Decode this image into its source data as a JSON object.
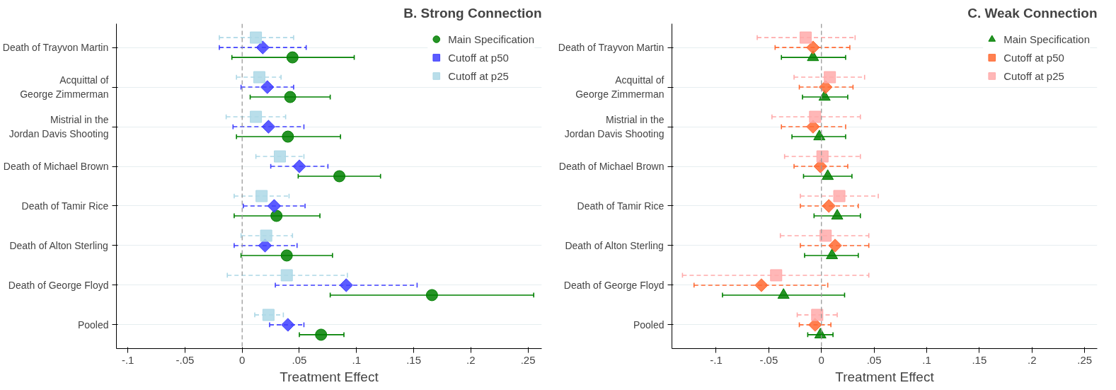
{
  "chart_data": [
    {
      "type": "scatter",
      "orientation": "horizontal",
      "title": "B. Strong Connection",
      "xlabel": "Treatment Effect",
      "categories": [
        "Death of Trayvon Martin",
        "Acquittal of\nGeorge Zimmerman",
        "Mistrial in the\nJordan Davis Shooting",
        "Death of Michael Brown",
        "Death of Tamir Rice",
        "Death of Alton Sterling",
        "Death of George Floyd",
        "Pooled"
      ],
      "series": [
        {
          "name": "Main Specification",
          "color": "#008000",
          "marker": "circle",
          "line_style": "solid",
          "values": [
            0.044,
            0.042,
            0.04,
            0.085,
            0.03,
            0.039,
            0.166,
            0.069
          ],
          "errors": [
            [
              -0.009,
              0.098
            ],
            [
              0.007,
              0.077
            ],
            [
              -0.005,
              0.086
            ],
            [
              0.049,
              0.121
            ],
            [
              -0.007,
              0.068
            ],
            [
              -0.001,
              0.079
            ],
            [
              0.077,
              0.255
            ],
            [
              0.05,
              0.089
            ]
          ]
        },
        {
          "name": "Cutoff at p50",
          "color": "#4040ff",
          "marker": "diamond",
          "line_style": "dashed",
          "values": [
            0.018,
            0.022,
            0.023,
            0.05,
            0.028,
            0.02,
            0.091,
            0.04
          ],
          "errors": [
            [
              -0.02,
              0.056
            ],
            [
              -0.001,
              0.045
            ],
            [
              -0.008,
              0.054
            ],
            [
              0.025,
              0.075
            ],
            [
              0.001,
              0.055
            ],
            [
              -0.007,
              0.048
            ],
            [
              0.029,
              0.153
            ],
            [
              0.024,
              0.054
            ]
          ]
        },
        {
          "name": "Cutoff at p25",
          "color": "#add8e6",
          "marker": "square",
          "line_style": "dashed",
          "values": [
            0.012,
            0.015,
            0.012,
            0.033,
            0.017,
            0.021,
            0.039,
            0.023
          ],
          "errors": [
            [
              -0.02,
              0.045
            ],
            [
              -0.005,
              0.034
            ],
            [
              -0.014,
              0.038
            ],
            [
              0.012,
              0.054
            ],
            [
              -0.007,
              0.041
            ],
            [
              -0.001,
              0.044
            ],
            [
              -0.013,
              0.092
            ],
            [
              0.011,
              0.036
            ]
          ]
        }
      ],
      "xlim": [
        -0.11,
        0.262
      ],
      "xticks": [
        {
          "value": -0.1,
          "label": "-.1"
        },
        {
          "value": -0.05,
          "label": "-.05"
        },
        0,
        {
          "value": 0.05,
          "label": ".05"
        },
        {
          "value": 0.1,
          "label": ".1"
        },
        {
          "value": 0.15,
          "label": ".15"
        },
        {
          "value": 0.2,
          "label": ".2"
        },
        {
          "value": 0.25,
          "label": ".25"
        }
      ],
      "ref_lines": [
        {
          "axis": "x",
          "value": 0,
          "color": "#999999",
          "line_style": "dashed"
        }
      ],
      "grid": "y",
      "legend": "top right"
    },
    {
      "type": "scatter",
      "orientation": "horizontal",
      "title": "C. Weak Connection",
      "xlabel": "Treatment Effect",
      "categories": [
        "Death of Trayvon Martin",
        "Acquittal of\nGeorge Zimmerman",
        "Mistrial in the\nJordan Davis Shooting",
        "Death of Michael Brown",
        "Death of Tamir Rice",
        "Death of Alton Sterling",
        "Death of George Floyd",
        "Pooled"
      ],
      "series": [
        {
          "name": "Main Specification",
          "color": "#008000",
          "marker": "triangle",
          "line_style": "solid",
          "values": [
            -0.008,
            0.003,
            -0.002,
            0.006,
            0.015,
            0.01,
            -0.036,
            -0.001
          ],
          "errors": [
            [
              -0.038,
              0.023
            ],
            [
              -0.018,
              0.025
            ],
            [
              -0.028,
              0.023
            ],
            [
              -0.017,
              0.029
            ],
            [
              -0.007,
              0.037
            ],
            [
              -0.016,
              0.035
            ],
            [
              -0.094,
              0.022
            ],
            [
              -0.013,
              0.011
            ]
          ]
        },
        {
          "name": "Cutoff at p50",
          "color": "#ff6a33",
          "marker": "diamond",
          "line_style": "dashed",
          "values": [
            -0.008,
            0.004,
            -0.008,
            -0.001,
            0.007,
            0.013,
            -0.057,
            -0.006
          ],
          "errors": [
            [
              -0.044,
              0.027
            ],
            [
              -0.021,
              0.03
            ],
            [
              -0.038,
              0.023
            ],
            [
              -0.026,
              0.025
            ],
            [
              -0.02,
              0.035
            ],
            [
              -0.02,
              0.045
            ],
            [
              -0.121,
              0.006
            ],
            [
              -0.021,
              0.009
            ]
          ]
        },
        {
          "name": "Cutoff at p25",
          "color": "#ffaaaa",
          "marker": "square",
          "line_style": "dashed",
          "values": [
            -0.015,
            0.008,
            -0.006,
            0.001,
            0.017,
            0.004,
            -0.043,
            -0.004
          ],
          "errors": [
            [
              -0.061,
              0.032
            ],
            [
              -0.026,
              0.041
            ],
            [
              -0.047,
              0.037
            ],
            [
              -0.035,
              0.037
            ],
            [
              -0.02,
              0.054
            ],
            [
              -0.039,
              0.045
            ],
            [
              -0.132,
              0.045
            ],
            [
              -0.023,
              0.015
            ]
          ]
        }
      ],
      "xlim": [
        -0.142,
        0.262
      ],
      "xticks": [
        {
          "value": -0.1,
          "label": "-.1"
        },
        {
          "value": -0.05,
          "label": "-.05"
        },
        0,
        {
          "value": 0.05,
          "label": ".05"
        },
        {
          "value": 0.1,
          "label": ".1"
        },
        {
          "value": 0.15,
          "label": ".15"
        },
        {
          "value": 0.2,
          "label": ".2"
        },
        {
          "value": 0.25,
          "label": ".25"
        }
      ],
      "ref_lines": [
        {
          "axis": "x",
          "value": 0,
          "color": "#999999",
          "line_style": "dashed"
        }
      ],
      "grid": "y",
      "legend": "top right"
    }
  ]
}
